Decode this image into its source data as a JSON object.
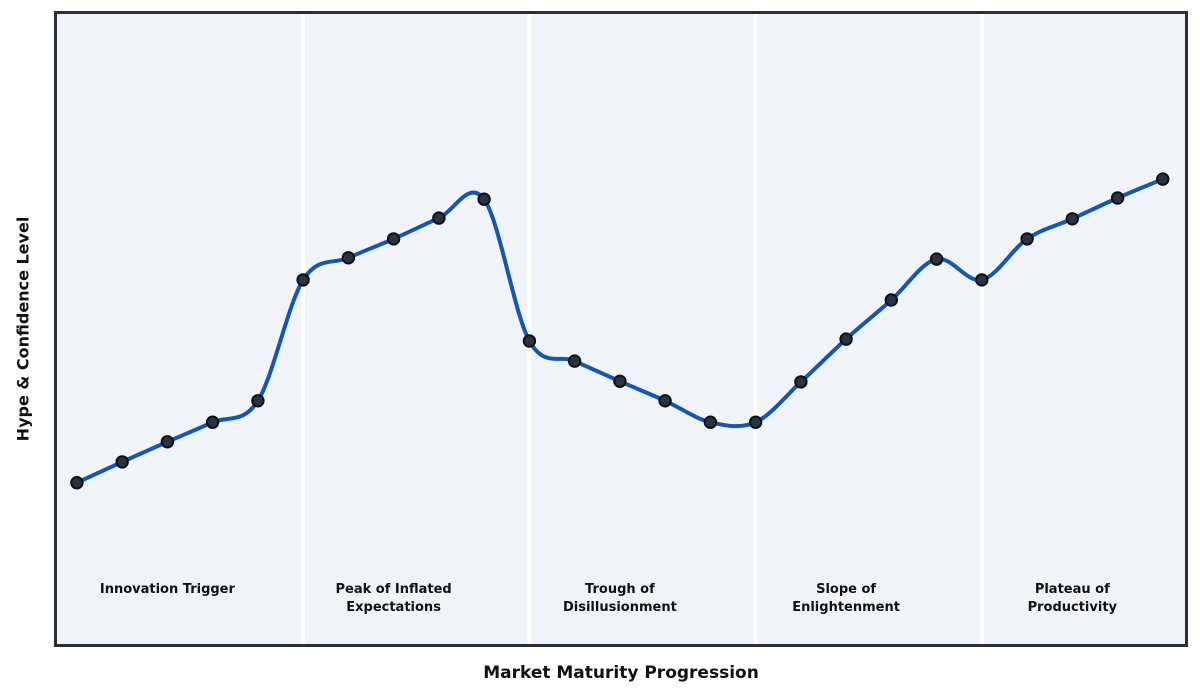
{
  "chart_data": {
    "type": "line",
    "title": "",
    "xlabel": "Market Maturity Progression",
    "ylabel": "Hype & Confidence Level",
    "x": [
      0,
      1,
      2,
      3,
      4,
      5,
      6,
      7,
      8,
      9,
      10,
      11,
      12,
      13,
      14,
      15,
      16,
      17,
      18,
      19,
      20,
      21,
      22,
      23,
      24
    ],
    "values": [
      25.6,
      28.9,
      32.1,
      35.2,
      38.6,
      57.8,
      61.3,
      64.3,
      67.6,
      70.6,
      48.1,
      44.9,
      41.7,
      38.6,
      35.2,
      35.2,
      41.6,
      48.4,
      54.6,
      61.1,
      57.8,
      64.3,
      67.5,
      70.8,
      73.8
    ],
    "xlim": [
      -0.44,
      24.49
    ],
    "ylim": [
      0,
      100
    ],
    "grid": false,
    "ticks": "none",
    "legend": "none",
    "line_smoothing": "spline",
    "markers": true,
    "phase_boundaries": [
      5,
      10,
      15,
      20
    ],
    "phases": [
      {
        "id": "innovation-trigger",
        "label": "Innovation Trigger",
        "label_x": 2,
        "x_range": [
          -0.44,
          5
        ]
      },
      {
        "id": "peak-of-inflated-expectations",
        "label": "Peak of Inflated\nExpectations",
        "label_x": 7,
        "x_range": [
          5,
          10
        ]
      },
      {
        "id": "trough-of-disillusionment",
        "label": "Trough of\nDisillusionment",
        "label_x": 12,
        "x_range": [
          10,
          15
        ]
      },
      {
        "id": "slope-of-enlightenment",
        "label": "Slope of\nEnlightenment",
        "label_x": 17,
        "x_range": [
          15,
          20
        ]
      },
      {
        "id": "plateau-of-productivity",
        "label": "Plateau of\nProductivity",
        "label_x": 22,
        "x_range": [
          20,
          24.49
        ]
      }
    ],
    "styles": {
      "figure_bg": "#ffffff",
      "plot_bg": "#f0f4f8",
      "border_color": "#2b2f36",
      "divider_color": "#ffffff",
      "line_color": "#1456b4",
      "marker_fill": "#2a3440",
      "marker_edge": "#0d1117",
      "label_color": "#111111"
    }
  }
}
